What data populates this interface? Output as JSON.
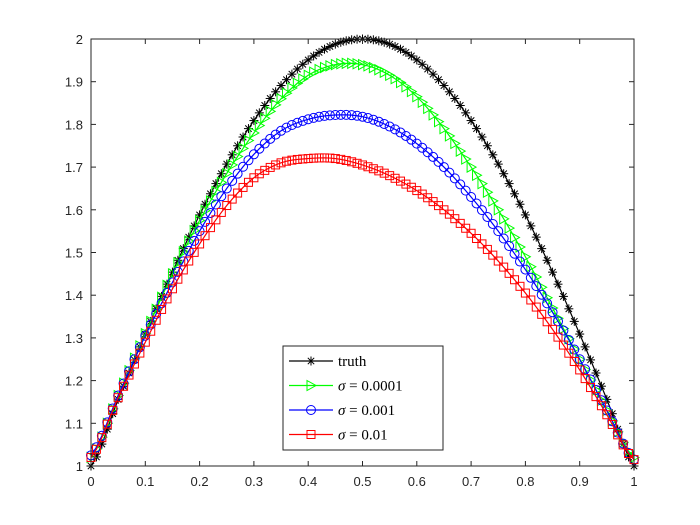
{
  "chart_data": {
    "type": "line",
    "xlim": [
      0,
      1
    ],
    "ylim": [
      1,
      2
    ],
    "x_ticks": [
      0,
      0.1,
      0.2,
      0.3,
      0.4,
      0.5,
      0.6,
      0.7,
      0.8,
      0.9,
      1
    ],
    "y_ticks": [
      1,
      1.1,
      1.2,
      1.3,
      1.4,
      1.5,
      1.6,
      1.7,
      1.8,
      1.9,
      2
    ],
    "grid": false,
    "legend_placement": "bottom-center",
    "x": [
      0,
      0.05,
      0.1,
      0.15,
      0.2,
      0.25,
      0.3,
      0.35,
      0.4,
      0.45,
      0.5,
      0.55,
      0.6,
      0.65,
      0.7,
      0.75,
      0.8,
      0.85,
      0.9,
      0.95,
      1
    ],
    "series": [
      {
        "name": "truth",
        "color": "#000000",
        "marker": "star",
        "values": [
          1.0,
          1.156,
          1.309,
          1.454,
          1.588,
          1.707,
          1.809,
          1.891,
          1.951,
          1.988,
          2.0,
          1.988,
          1.951,
          1.891,
          1.809,
          1.707,
          1.588,
          1.454,
          1.309,
          1.156,
          1.0
        ]
      },
      {
        "name": "σ = 0.0001",
        "color": "#00ff00",
        "marker": "triangle-right",
        "values": [
          1.02,
          1.165,
          1.31,
          1.45,
          1.575,
          1.685,
          1.78,
          1.86,
          1.915,
          1.94,
          1.94,
          1.915,
          1.865,
          1.79,
          1.7,
          1.6,
          1.49,
          1.37,
          1.25,
          1.13,
          1.02
        ]
      },
      {
        "name": "σ = 0.001",
        "color": "#0000ff",
        "marker": "circle",
        "values": [
          1.025,
          1.165,
          1.305,
          1.43,
          1.55,
          1.65,
          1.73,
          1.785,
          1.812,
          1.822,
          1.818,
          1.795,
          1.755,
          1.7,
          1.63,
          1.55,
          1.46,
          1.36,
          1.25,
          1.13,
          1.015
        ]
      },
      {
        "name": "σ = 0.01",
        "color": "#ff0000",
        "marker": "square",
        "values": [
          1.02,
          1.16,
          1.29,
          1.415,
          1.52,
          1.61,
          1.675,
          1.71,
          1.72,
          1.72,
          1.705,
          1.68,
          1.645,
          1.6,
          1.545,
          1.48,
          1.405,
          1.32,
          1.225,
          1.12,
          1.015
        ]
      }
    ]
  }
}
